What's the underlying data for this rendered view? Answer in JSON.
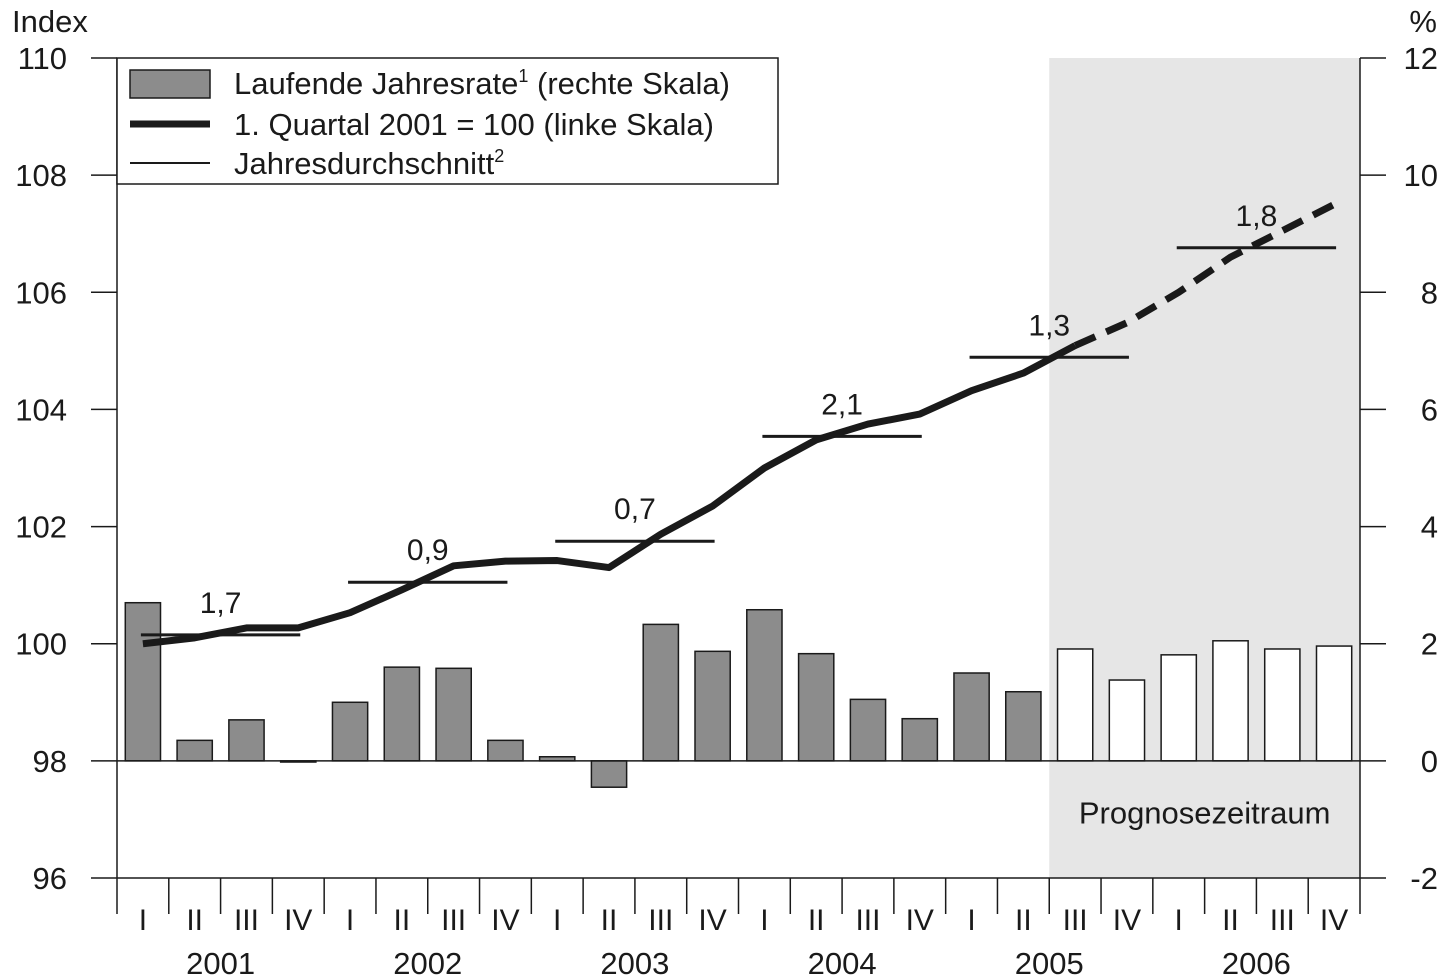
{
  "chart_data": {
    "type": "bar",
    "left_axis": {
      "label": "Index",
      "min": 96,
      "max": 110,
      "ticks": [
        96,
        98,
        100,
        102,
        104,
        106,
        108,
        110
      ]
    },
    "right_axis": {
      "label": "%",
      "min": -2,
      "max": 12,
      "ticks": [
        -2,
        0,
        2,
        4,
        6,
        8,
        10,
        12
      ]
    },
    "legend": {
      "position": "top-left",
      "bars_label": "Laufende Jahresrate",
      "bars_sup": "1",
      "bars_suffix": " (rechte Skala)",
      "line_label": "1. Quartal 2001 = 100 (linke Skala)",
      "avg_label": "Jahresdurchschnitt",
      "avg_sup": "2"
    },
    "forecast_label": "Prognosezeitraum",
    "forecast_start_index": 18,
    "quarter_labels": [
      "I",
      "II",
      "III",
      "IV",
      "I",
      "II",
      "III",
      "IV",
      "I",
      "II",
      "III",
      "IV",
      "I",
      "II",
      "III",
      "IV",
      "I",
      "II",
      "III",
      "IV",
      "I",
      "II",
      "III",
      "IV"
    ],
    "years": [
      "2001",
      "2002",
      "2003",
      "2004",
      "2005",
      "2006"
    ],
    "series": [
      {
        "name": "Laufende Jahresrate",
        "axis": "right",
        "values": [
          2.7,
          0.35,
          0.7,
          -0.02,
          1.0,
          1.6,
          1.58,
          0.35,
          0.07,
          -0.45,
          2.33,
          1.87,
          2.58,
          1.83,
          1.05,
          0.72,
          1.5,
          1.18,
          1.91,
          1.38,
          1.81,
          2.05,
          1.91,
          1.96
        ]
      },
      {
        "name": "1. Quartal 2001 = 100",
        "axis": "left",
        "values": [
          100.0,
          100.1,
          100.27,
          100.27,
          100.53,
          100.92,
          101.33,
          101.41,
          101.42,
          101.3,
          101.87,
          102.35,
          103.0,
          103.48,
          103.75,
          103.92,
          104.32,
          104.62,
          105.09,
          105.48,
          106.0,
          106.6,
          107.05,
          107.5
        ]
      }
    ],
    "annual_averages": [
      {
        "year": "2001",
        "level": 100.15,
        "label": "1,7"
      },
      {
        "year": "2002",
        "level": 101.05,
        "label": "0,9"
      },
      {
        "year": "2003",
        "level": 101.75,
        "label": "0,7"
      },
      {
        "year": "2004",
        "level": 103.54,
        "label": "2,1"
      },
      {
        "year": "2005",
        "level": 104.89,
        "label": "1,3"
      },
      {
        "year": "2006",
        "level": 106.76,
        "label": "1,8"
      }
    ]
  }
}
